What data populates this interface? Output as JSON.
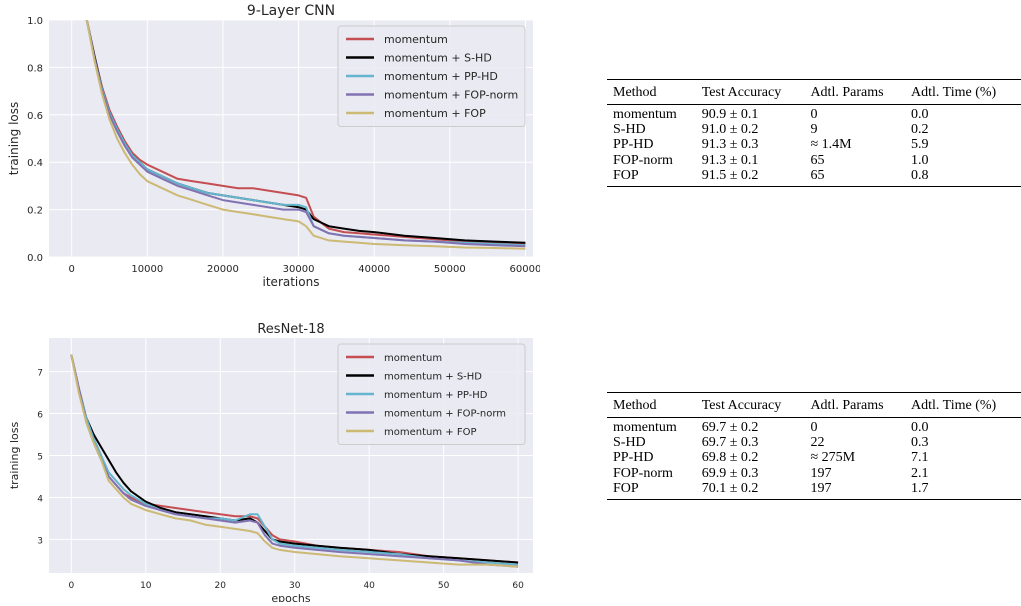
{
  "colors": {
    "plot_bg": "#eaeaf2",
    "grid": "#ffffff",
    "momentum": "#c44e52",
    "s_hd": "#000000",
    "pp_hd": "#64b5cd",
    "fop_norm": "#8172b2",
    "fop": "#ccb974"
  },
  "chart_data": [
    {
      "type": "line",
      "title": "9-Layer CNN",
      "xlabel": "iterations",
      "ylabel": "training loss",
      "xlim": [
        -3000,
        61000
      ],
      "ylim": [
        0.0,
        1.0
      ],
      "xticks": [
        "0",
        "10000",
        "20000",
        "30000",
        "40000",
        "50000",
        "60000"
      ],
      "yticks": [
        "0.0",
        "0.2",
        "0.4",
        "0.6",
        "0.8",
        "1.0"
      ],
      "grid": true,
      "legend": "top-right",
      "x": [
        2000,
        3000,
        4000,
        5000,
        6000,
        7000,
        8000,
        9000,
        10000,
        12000,
        14000,
        16000,
        18000,
        20000,
        22000,
        24000,
        26000,
        28000,
        30000,
        31000,
        32000,
        34000,
        36000,
        38000,
        40000,
        44000,
        48000,
        52000,
        56000,
        60000
      ],
      "series": [
        {
          "name": "momentum",
          "color": "#c44e52",
          "values": [
            1.0,
            0.85,
            0.72,
            0.62,
            0.55,
            0.49,
            0.44,
            0.41,
            0.39,
            0.36,
            0.33,
            0.32,
            0.31,
            0.3,
            0.29,
            0.29,
            0.28,
            0.27,
            0.26,
            0.25,
            0.17,
            0.12,
            0.105,
            0.1,
            0.095,
            0.085,
            0.075,
            0.065,
            0.06,
            0.055
          ]
        },
        {
          "name": "momentum + S-HD",
          "color": "#000000",
          "values": [
            1.0,
            0.85,
            0.71,
            0.61,
            0.54,
            0.48,
            0.43,
            0.4,
            0.37,
            0.34,
            0.31,
            0.29,
            0.27,
            0.26,
            0.25,
            0.24,
            0.23,
            0.22,
            0.21,
            0.2,
            0.16,
            0.13,
            0.12,
            0.11,
            0.105,
            0.09,
            0.08,
            0.07,
            0.065,
            0.06
          ]
        },
        {
          "name": "momentum + PP-HD",
          "color": "#64b5cd",
          "values": [
            1.0,
            0.84,
            0.71,
            0.61,
            0.54,
            0.48,
            0.43,
            0.4,
            0.37,
            0.34,
            0.31,
            0.29,
            0.27,
            0.26,
            0.25,
            0.24,
            0.23,
            0.22,
            0.22,
            0.21,
            0.13,
            0.1,
            0.09,
            0.085,
            0.08,
            0.07,
            0.065,
            0.06,
            0.055,
            0.05
          ]
        },
        {
          "name": "momentum + FOP-norm",
          "color": "#8172b2",
          "values": [
            1.0,
            0.84,
            0.7,
            0.6,
            0.53,
            0.47,
            0.42,
            0.39,
            0.36,
            0.33,
            0.3,
            0.28,
            0.26,
            0.24,
            0.23,
            0.22,
            0.21,
            0.2,
            0.2,
            0.19,
            0.13,
            0.1,
            0.09,
            0.085,
            0.08,
            0.07,
            0.065,
            0.055,
            0.05,
            0.045
          ]
        },
        {
          "name": "momentum + FOP",
          "color": "#ccb974",
          "values": [
            1.0,
            0.83,
            0.69,
            0.58,
            0.5,
            0.44,
            0.39,
            0.35,
            0.32,
            0.29,
            0.26,
            0.24,
            0.22,
            0.2,
            0.19,
            0.18,
            0.17,
            0.16,
            0.15,
            0.13,
            0.09,
            0.07,
            0.065,
            0.06,
            0.055,
            0.05,
            0.045,
            0.04,
            0.038,
            0.035
          ]
        }
      ]
    },
    {
      "type": "line",
      "title": "ResNet-18",
      "xlabel": "epochs",
      "ylabel": "training loss",
      "xlim": [
        -3,
        62
      ],
      "ylim": [
        2.2,
        7.8
      ],
      "xticks": [
        "0",
        "10",
        "20",
        "30",
        "40",
        "50",
        "60"
      ],
      "yticks": [
        "3",
        "4",
        "5",
        "6",
        "7"
      ],
      "grid": true,
      "legend": "top-right",
      "x": [
        0,
        1,
        2,
        3,
        4,
        5,
        6,
        7,
        8,
        10,
        12,
        14,
        16,
        18,
        20,
        22,
        24,
        25,
        26,
        27,
        28,
        30,
        33,
        36,
        40,
        44,
        48,
        52,
        56,
        60
      ],
      "series": [
        {
          "name": "momentum",
          "color": "#c44e52",
          "values": [
            7.4,
            6.6,
            5.9,
            5.4,
            5.0,
            4.5,
            4.3,
            4.1,
            4.0,
            3.85,
            3.8,
            3.75,
            3.7,
            3.65,
            3.6,
            3.55,
            3.55,
            3.5,
            3.3,
            3.1,
            3.0,
            2.95,
            2.85,
            2.8,
            2.75,
            2.7,
            2.6,
            2.55,
            2.5,
            2.45
          ]
        },
        {
          "name": "momentum + S-HD",
          "color": "#000000",
          "values": [
            7.4,
            6.6,
            5.9,
            5.5,
            5.2,
            4.9,
            4.6,
            4.35,
            4.15,
            3.9,
            3.75,
            3.65,
            3.6,
            3.55,
            3.5,
            3.45,
            3.5,
            3.4,
            3.2,
            3.0,
            2.95,
            2.9,
            2.85,
            2.8,
            2.75,
            2.65,
            2.6,
            2.55,
            2.5,
            2.45
          ]
        },
        {
          "name": "momentum + PP-HD",
          "color": "#64b5cd",
          "values": [
            7.4,
            6.6,
            5.9,
            5.4,
            5.0,
            4.6,
            4.4,
            4.2,
            4.05,
            3.85,
            3.7,
            3.6,
            3.55,
            3.5,
            3.5,
            3.45,
            3.6,
            3.6,
            3.3,
            3.0,
            2.9,
            2.85,
            2.8,
            2.75,
            2.7,
            2.65,
            2.55,
            2.5,
            2.45,
            2.4
          ]
        },
        {
          "name": "momentum + FOP-norm",
          "color": "#8172b2",
          "values": [
            7.4,
            6.6,
            5.8,
            5.3,
            4.9,
            4.5,
            4.3,
            4.1,
            3.95,
            3.8,
            3.7,
            3.6,
            3.55,
            3.5,
            3.45,
            3.4,
            3.45,
            3.4,
            3.1,
            2.9,
            2.85,
            2.8,
            2.75,
            2.7,
            2.65,
            2.6,
            2.55,
            2.5,
            2.4,
            2.35
          ]
        },
        {
          "name": "momentum + FOP",
          "color": "#ccb974",
          "values": [
            7.4,
            6.5,
            5.8,
            5.3,
            4.9,
            4.4,
            4.2,
            4.0,
            3.85,
            3.7,
            3.6,
            3.5,
            3.45,
            3.35,
            3.3,
            3.25,
            3.2,
            3.15,
            2.95,
            2.8,
            2.75,
            2.7,
            2.65,
            2.6,
            2.55,
            2.5,
            2.45,
            2.4,
            2.4,
            2.35
          ]
        }
      ]
    }
  ],
  "tables": {
    "headers": [
      "Method",
      "Test Accuracy",
      "Adtl. Params",
      "Adtl. Time (%)"
    ],
    "cnn": {
      "rows": [
        [
          "momentum",
          "90.9 ± 0.1",
          "0",
          "0.0"
        ],
        [
          "S-HD",
          "91.0 ± 0.2",
          "9",
          "0.2"
        ],
        [
          "PP-HD",
          "91.3 ± 0.3",
          "≈ 1.4M",
          "5.9"
        ],
        [
          "FOP-norm",
          "91.3 ± 0.1",
          "65",
          "1.0"
        ],
        [
          "FOP",
          "91.5 ± 0.2",
          "65",
          "0.8"
        ]
      ]
    },
    "resnet": {
      "rows": [
        [
          "momentum",
          "69.7 ± 0.2",
          "0",
          "0.0"
        ],
        [
          "S-HD",
          "69.7 ± 0.3",
          "22",
          "0.3"
        ],
        [
          "PP-HD",
          "69.8 ± 0.2",
          "≈ 275M",
          "7.1"
        ],
        [
          "FOP-norm",
          "69.9 ± 0.3",
          "197",
          "2.1"
        ],
        [
          "FOP",
          "70.1 ± 0.2",
          "197",
          "1.7"
        ]
      ]
    }
  }
}
